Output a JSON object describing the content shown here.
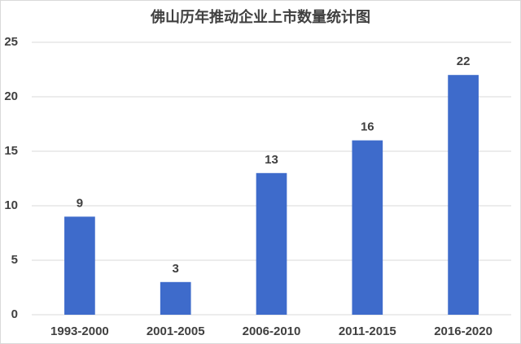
{
  "chart_data": {
    "type": "bar",
    "title": "佛山历年推动企业上市数量统计图",
    "categories": [
      "1993-2000",
      "2001-2005",
      "2006-2010",
      "2011-2015",
      "2016-2020"
    ],
    "values": [
      9,
      3,
      13,
      16,
      22
    ],
    "color": "#3e6bcb",
    "ylim": [
      0,
      25
    ],
    "yticks": [
      0,
      5,
      10,
      15,
      20,
      25
    ],
    "grid": true
  }
}
